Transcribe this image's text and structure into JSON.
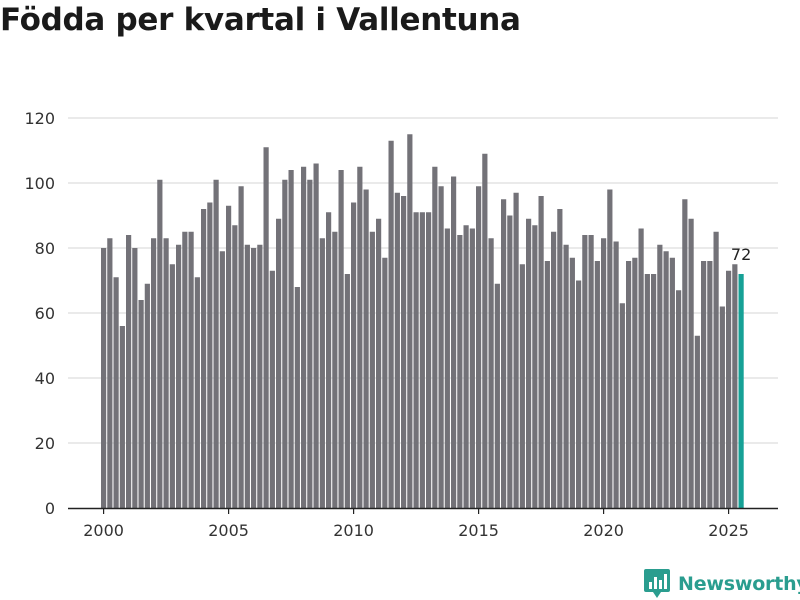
{
  "title": "Födda per kvartal i Vallentuna",
  "brand": "Newsworthy",
  "colors": {
    "bar": "#737278",
    "highlight": "#16a196",
    "grid": "#dddddd",
    "brand": "#2a9d8f"
  },
  "chart_data": {
    "type": "bar",
    "title": "Födda per kvartal i Vallentuna",
    "xlabel": "",
    "ylabel": "",
    "ylim": [
      0,
      120
    ],
    "yticks": [
      0,
      20,
      40,
      60,
      80,
      100,
      120
    ],
    "xticks": [
      "2000",
      "2005",
      "2010",
      "2015",
      "2020",
      "2025"
    ],
    "grid": true,
    "start_year": 2000,
    "periods_per_year": 4,
    "highlight_last": true,
    "last_label": "72",
    "values": [
      80,
      83,
      71,
      56,
      84,
      80,
      64,
      69,
      83,
      101,
      83,
      75,
      81,
      85,
      85,
      71,
      92,
      94,
      101,
      79,
      93,
      87,
      99,
      81,
      80,
      81,
      111,
      73,
      89,
      101,
      104,
      68,
      105,
      101,
      106,
      83,
      91,
      85,
      104,
      72,
      94,
      105,
      98,
      85,
      89,
      77,
      113,
      97,
      96,
      115,
      91,
      91,
      91,
      105,
      99,
      86,
      102,
      84,
      87,
      86,
      99,
      109,
      83,
      69,
      95,
      90,
      97,
      75,
      89,
      87,
      96,
      76,
      85,
      92,
      81,
      77,
      70,
      84,
      84,
      76,
      83,
      98,
      82,
      63,
      76,
      77,
      86,
      72,
      72,
      81,
      79,
      77,
      67,
      95,
      89,
      53,
      76,
      76,
      85,
      62,
      73,
      75,
      72
    ]
  }
}
